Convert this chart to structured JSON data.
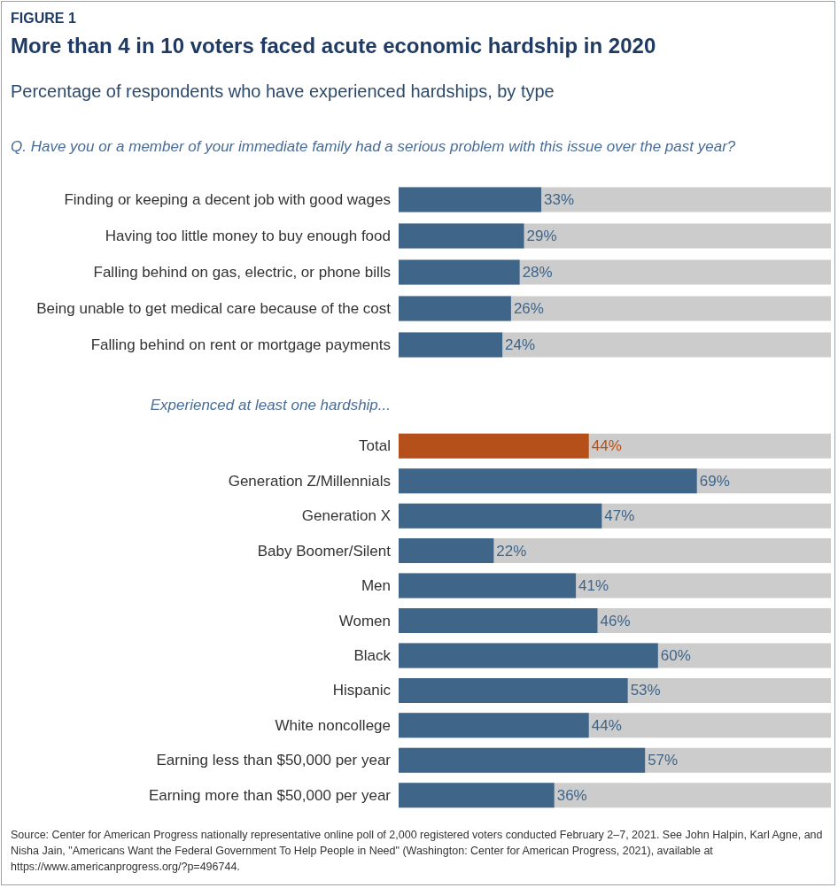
{
  "chart_data": [
    {
      "type": "bar",
      "orientation": "horizontal",
      "title": "More than 4 in 10 voters faced acute economic hardship in 2020",
      "subtitle": "Percentage of respondents who have experienced hardships, by type",
      "annotations": [
        "FIGURE 1",
        "Q. Have you or a member of your immediate family had a serious problem with this issue over the past year?"
      ],
      "categories": [
        "Finding or keeping a decent job with good wages",
        "Having too little money to buy enough food",
        "Falling behind on gas, electric, or phone bills",
        "Being unable to get medical care because of the cost",
        "Falling behind on rent or mortgage payments"
      ],
      "values": [
        33,
        29,
        28,
        26,
        24
      ],
      "value_labels": [
        "33%",
        "29%",
        "28%",
        "26%",
        "24%"
      ],
      "colors": [
        "#3f6589",
        "#3f6589",
        "#3f6589",
        "#3f6589",
        "#3f6589"
      ],
      "xlim": [
        0,
        100
      ],
      "tick_labels": "y"
    },
    {
      "type": "bar",
      "orientation": "horizontal",
      "subtitle": "Experienced at least one hardship...",
      "annotations": [
        "Source: Center for American Progress nationally representative online poll of 2,000 registered voters conducted February 2–7, 2021. See John Halpin, Karl Agne, and Nisha Jain, \"Americans Want the Federal Government To Help People in Need\" (Washington: Center for American Progress, 2021), available at https://www.americanprogress.org/?p=496744."
      ],
      "categories": [
        "Total",
        "Generation Z/Millennials",
        "Generation X",
        "Baby Boomer/Silent",
        "Men",
        "Women",
        "Black",
        "Hispanic",
        "White noncollege",
        "Earning less than $50,000 per year",
        "Earning more than $50,000 per year"
      ],
      "values": [
        44,
        69,
        47,
        22,
        41,
        46,
        60,
        53,
        44,
        57,
        36
      ],
      "value_labels": [
        "44%",
        "69%",
        "47%",
        "22%",
        "41%",
        "46%",
        "60%",
        "53%",
        "44%",
        "57%",
        "36%"
      ],
      "colors": [
        "#b5501a",
        "#3f6589",
        "#3f6589",
        "#3f6589",
        "#3f6589",
        "#3f6589",
        "#3f6589",
        "#3f6589",
        "#3f6589",
        "#3f6589",
        "#3f6589"
      ],
      "xlim": [
        0,
        100
      ],
      "tick_labels": "y"
    }
  ]
}
